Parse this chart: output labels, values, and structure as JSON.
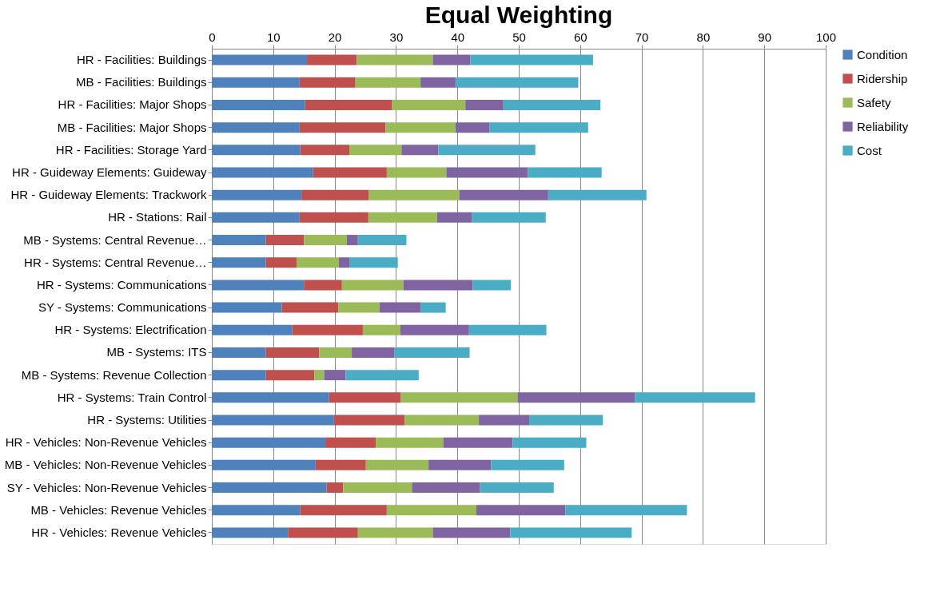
{
  "chart_data": {
    "type": "bar",
    "orientation": "horizontal",
    "stacked": true,
    "title": "Equal Weighting",
    "categories": [
      "HR - Facilities: Buildings",
      "MB - Facilities: Buildings",
      "HR - Facilities: Major Shops",
      "MB - Facilities: Major Shops",
      "HR - Facilities: Storage Yard",
      "HR - Guideway Elements: Guideway",
      "HR - Guideway Elements: Trackwork",
      "HR - Stations: Rail",
      "MB - Systems: Central Revenue…",
      "HR - Systems: Central Revenue…",
      "HR - Systems: Communications",
      "SY - Systems: Communications",
      "HR - Systems: Electrification",
      "MB - Systems: ITS",
      "MB - Systems: Revenue Collection",
      "HR - Systems: Train Control",
      "HR - Systems: Utilities",
      "HR - Vehicles: Non-Revenue Vehicles",
      "MB - Vehicles: Non-Revenue Vehicles",
      "SY - Vehicles: Non-Revenue Vehicles",
      "MB - Vehicles: Revenue Vehicles",
      "HR - Vehicles: Revenue Vehicles"
    ],
    "series": [
      {
        "name": "Condition",
        "color": "#4f81bd",
        "values": [
          15.5,
          14.3,
          15.2,
          14.3,
          14.4,
          16.5,
          14.6,
          14.3,
          8.8,
          8.8,
          15.0,
          11.4,
          13.1,
          8.8,
          8.8,
          19.1,
          19.9,
          18.5,
          16.9,
          18.7,
          14.4,
          12.4
        ]
      },
      {
        "name": "Ridership",
        "color": "#c0504d",
        "values": [
          8.1,
          9.1,
          14.1,
          14.0,
          8.0,
          12.0,
          11.0,
          11.2,
          6.2,
          5.0,
          6.2,
          9.2,
          11.5,
          8.7,
          7.9,
          11.7,
          11.5,
          8.2,
          8.2,
          2.7,
          14.1,
          11.4
        ]
      },
      {
        "name": "Safety",
        "color": "#9bbb59",
        "values": [
          12.4,
          10.6,
          12.0,
          11.4,
          8.5,
          9.7,
          14.7,
          11.2,
          7.0,
          6.9,
          10.0,
          6.7,
          6.1,
          5.3,
          1.6,
          19.0,
          12.1,
          11.0,
          10.2,
          11.2,
          14.6,
          12.2
        ]
      },
      {
        "name": "Reliability",
        "color": "#8064a2",
        "values": [
          6.1,
          5.7,
          6.2,
          5.5,
          6.0,
          13.3,
          14.5,
          5.7,
          1.8,
          1.7,
          11.3,
          6.7,
          11.2,
          6.9,
          3.5,
          19.1,
          8.2,
          11.3,
          10.2,
          11.1,
          14.5,
          12.6
        ]
      },
      {
        "name": "Cost",
        "color": "#4bacc6",
        "values": [
          20.0,
          20.0,
          15.8,
          16.1,
          15.8,
          12.0,
          16.0,
          12.0,
          7.9,
          7.9,
          6.2,
          4.1,
          12.6,
          12.3,
          11.9,
          19.6,
          12.0,
          12.0,
          11.9,
          12.0,
          19.8,
          19.8
        ]
      }
    ],
    "xlim": [
      0,
      100
    ],
    "xticks": [
      0,
      10,
      20,
      30,
      40,
      50,
      60,
      70,
      80,
      90,
      100
    ],
    "grid": "x",
    "legend": "right"
  }
}
